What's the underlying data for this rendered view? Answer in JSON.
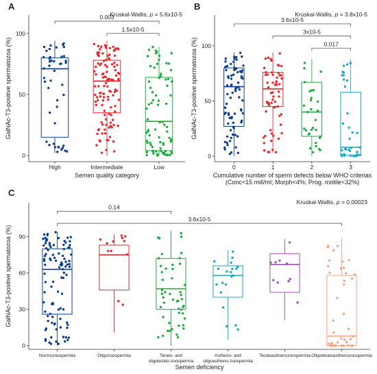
{
  "chart_data": [
    {
      "panel_label": "A",
      "type": "box",
      "ylabel": "GalNAc-T3-positive spermatozoa (%)",
      "xlabel": "Semen quality category",
      "ylim": [
        -5,
        115
      ],
      "yticks": [
        0,
        50,
        100
      ],
      "categories": [
        "High",
        "Intermediate",
        "Low"
      ],
      "colors": [
        "#0a3d8f",
        "#e8262b",
        "#1eab3c"
      ],
      "boxes": [
        {
          "q1": 15,
          "median": 71,
          "q3": 80,
          "whisker_low": 2,
          "whisker_high": 94
        },
        {
          "q1": 35,
          "median": 61,
          "q3": 78,
          "whisker_low": 0,
          "whisker_high": 94
        },
        {
          "q1": 4,
          "median": 28,
          "q3": 64,
          "whisker_low": 0,
          "whisker_high": 89
        }
      ],
      "test": {
        "label": "Kruskal-Wallis, ",
        "p_sym": "p",
        "p_text": " = 5.6x10-5"
      },
      "comparisons": [
        {
          "from": 0,
          "to": 2,
          "label": "0.003",
          "y": 110
        },
        {
          "from": 1,
          "to": 2,
          "label": "1.5x10-5",
          "y": 100
        }
      ]
    },
    {
      "panel_label": "B",
      "type": "box",
      "ylabel": "GalNAc-T3-positive spermatozoa (%)",
      "xlabel": "Cumulative number of sperm defects below WHO criterias",
      "xlabel2": "(Conc<15 mill/ml; Morph<4%; Prog. motile<32%)",
      "ylim": [
        -5,
        128
      ],
      "yticks": [
        0,
        50,
        100
      ],
      "categories": [
        "0",
        "1",
        "2",
        "3"
      ],
      "colors": [
        "#0a3d8f",
        "#e8262b",
        "#1eab3c",
        "#1aa7be"
      ],
      "boxes": [
        {
          "q1": 27,
          "median": 63,
          "q3": 80,
          "whisker_low": 0,
          "whisker_high": 94
        },
        {
          "q1": 45,
          "median": 61,
          "q3": 76,
          "whisker_low": 3,
          "whisker_high": 94
        },
        {
          "q1": 18,
          "median": 40,
          "q3": 67,
          "whisker_low": 0,
          "whisker_high": 88
        },
        {
          "q1": 1,
          "median": 8,
          "q3": 58,
          "whisker_low": 0,
          "whisker_high": 88
        }
      ],
      "test": {
        "label": "Kruskal-Wallis, ",
        "p_sym": "p",
        "p_text": " = 3.8x10-5"
      },
      "comparisons": [
        {
          "from": 0,
          "to": 3,
          "label": "3.6x10-5",
          "y": 120
        },
        {
          "from": 1,
          "to": 3,
          "label": "3x10-5",
          "y": 109
        },
        {
          "from": 2,
          "to": 3,
          "label": "0.017",
          "y": 98
        }
      ]
    },
    {
      "panel_label": "C",
      "type": "box",
      "ylabel": "GalNAc-T3-positive spermatozoa (%)",
      "xlabel": "Semen deficiency",
      "ylim": [
        -3,
        118
      ],
      "yticks": [
        0,
        30,
        60,
        90
      ],
      "categories": [
        "Normozoospermia",
        "Oligozoospermia",
        "Terato- and|oligoterato-zoospermia",
        "Astheno- and|oligoastheno-zoospermia",
        "Teratoasthenozoospermia",
        "Oligoteratoasthenozoospermia"
      ],
      "colors": [
        "#0a3d8f",
        "#e8262b",
        "#1eab3c",
        "#1aa7be",
        "#a24db8",
        "#f6a27e"
      ],
      "boxes": [
        {
          "q1": 26,
          "median": 63,
          "q3": 80,
          "whisker_low": 0,
          "whisker_high": 94
        },
        {
          "q1": 46,
          "median": 75,
          "q3": 83,
          "whisker_low": 11,
          "whisker_high": 92
        },
        {
          "q1": 30,
          "median": 47,
          "q3": 72,
          "whisker_low": 0,
          "whisker_high": 95
        },
        {
          "q1": 40,
          "median": 58,
          "q3": 66,
          "whisker_low": 5,
          "whisker_high": 79
        },
        {
          "q1": 44,
          "median": 67,
          "q3": 76,
          "whisker_low": 21,
          "whisker_high": 88
        },
        {
          "q1": 0,
          "median": 8,
          "q3": 58,
          "whisker_low": 0,
          "whisker_high": 89
        }
      ],
      "test": {
        "label": "Kruskal-Wallis, ",
        "p_sym": "p",
        "p_text": " = 0.00023"
      },
      "comparisons": [
        {
          "from": 0,
          "to": 2,
          "label": "0.14",
          "y": 111
        },
        {
          "from": 0,
          "to": 5,
          "label": "3.6x10-5",
          "y": 101
        }
      ]
    }
  ]
}
